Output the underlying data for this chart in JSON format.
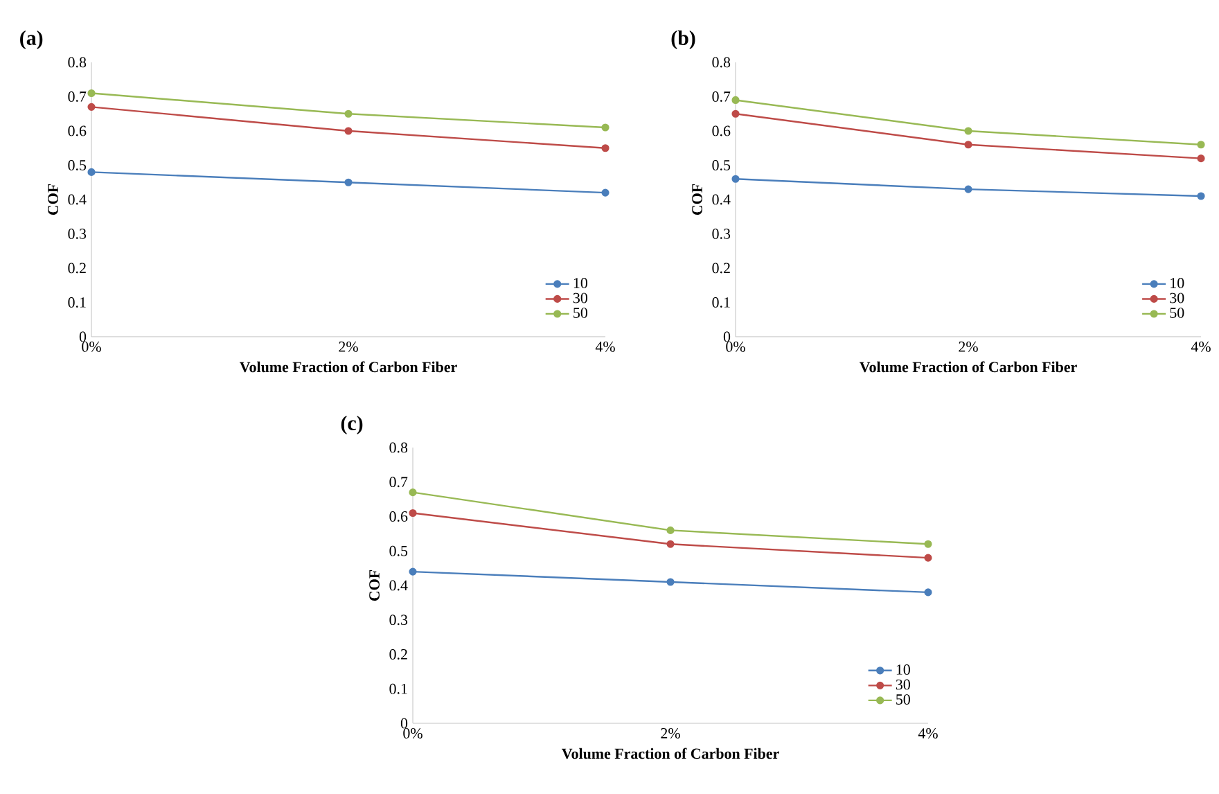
{
  "chart_data": [
    {
      "type": "line",
      "title": "(a)",
      "xlabel": "Volume Fraction  of Carbon Fiber",
      "ylabel": "COF",
      "categories": [
        "0%",
        "2%",
        "4%"
      ],
      "ylim": [
        0,
        0.8
      ],
      "yticks": [
        0,
        0.1,
        0.2,
        0.3,
        0.4,
        0.5,
        0.6,
        0.7,
        0.8
      ],
      "legend": "bottom right",
      "marker": "circle",
      "grid": false,
      "series": [
        {
          "name": "10",
          "color": "#4a7ebb",
          "values": [
            0.48,
            0.45,
            0.42
          ]
        },
        {
          "name": "30",
          "color": "#be4b48",
          "values": [
            0.67,
            0.6,
            0.55
          ]
        },
        {
          "name": "50",
          "color": "#98b954",
          "values": [
            0.71,
            0.65,
            0.61
          ]
        }
      ]
    },
    {
      "type": "line",
      "title": "(b)",
      "xlabel": "Volume Fraction  of Carbon Fiber",
      "ylabel": "COF",
      "categories": [
        "0%",
        "2%",
        "4%"
      ],
      "ylim": [
        0,
        0.8
      ],
      "yticks": [
        0,
        0.1,
        0.2,
        0.3,
        0.4,
        0.5,
        0.6,
        0.7,
        0.8
      ],
      "legend": "bottom right",
      "marker": "circle",
      "grid": false,
      "series": [
        {
          "name": "10",
          "color": "#4a7ebb",
          "values": [
            0.46,
            0.43,
            0.41
          ]
        },
        {
          "name": "30",
          "color": "#be4b48",
          "values": [
            0.65,
            0.56,
            0.52
          ]
        },
        {
          "name": "50",
          "color": "#98b954",
          "values": [
            0.69,
            0.6,
            0.56
          ]
        }
      ]
    },
    {
      "type": "line",
      "title": "(c)",
      "xlabel": "Volume Fraction  of Carbon Fiber",
      "ylabel": "COF",
      "categories": [
        "0%",
        "2%",
        "4%"
      ],
      "ylim": [
        0,
        0.8
      ],
      "yticks": [
        0,
        0.1,
        0.2,
        0.3,
        0.4,
        0.5,
        0.6,
        0.7,
        0.8
      ],
      "legend": "bottom right",
      "marker": "circle",
      "grid": false,
      "series": [
        {
          "name": "10",
          "color": "#4a7ebb",
          "values": [
            0.44,
            0.41,
            0.38
          ]
        },
        {
          "name": "30",
          "color": "#be4b48",
          "values": [
            0.61,
            0.52,
            0.48
          ]
        },
        {
          "name": "50",
          "color": "#98b954",
          "values": [
            0.67,
            0.56,
            0.52
          ]
        }
      ]
    }
  ]
}
